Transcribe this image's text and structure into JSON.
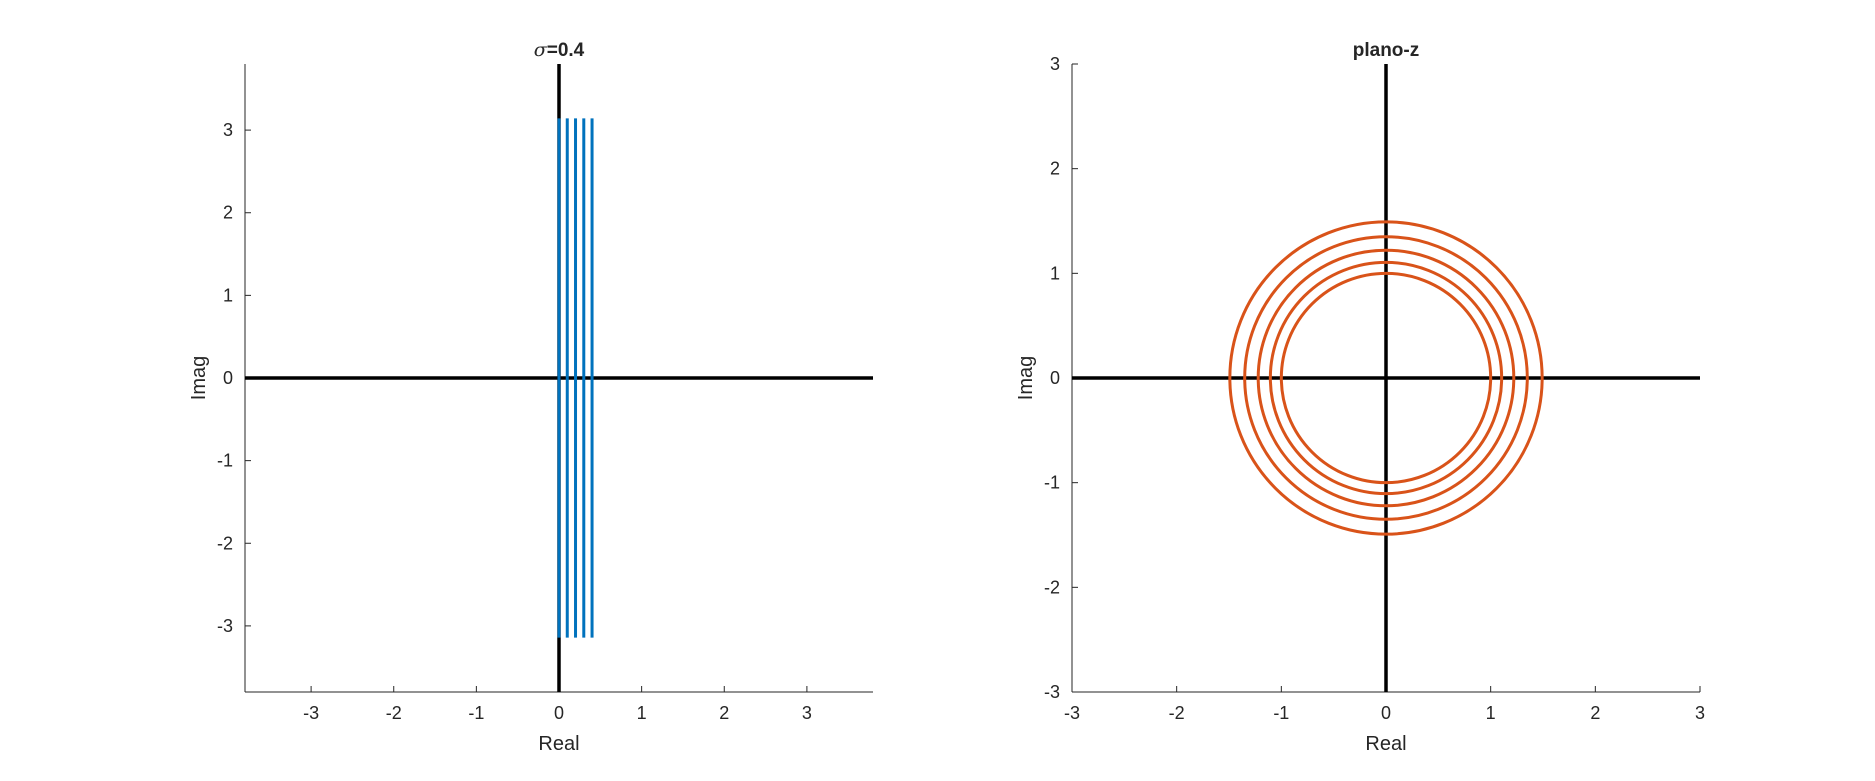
{
  "chart_data": [
    {
      "type": "line",
      "title": "=0.4",
      "title_symbol": "σ",
      "xlabel": "Real",
      "ylabel": "Imag",
      "xlim": [
        -3.8,
        3.8
      ],
      "ylim": [
        -3.8,
        3.8
      ],
      "xticks": [
        -3,
        -2,
        -1,
        0,
        1,
        2,
        3
      ],
      "yticks": [
        -3,
        -2,
        -1,
        0,
        1,
        2,
        3
      ],
      "grid": false,
      "reference_lines": [
        {
          "name": "real-axis",
          "x": [
            -3.8,
            3.8
          ],
          "y": [
            0,
            0
          ],
          "color": "#000000"
        },
        {
          "name": "imag-axis",
          "x": [
            0,
            0
          ],
          "y": [
            -3.8,
            3.8
          ],
          "color": "#000000"
        }
      ],
      "series": [
        {
          "x": [
            0.0,
            0.0
          ],
          "y": [
            -3.1416,
            3.1416
          ],
          "color": "#0072BD"
        },
        {
          "x": [
            0.1,
            0.1
          ],
          "y": [
            -3.1416,
            3.1416
          ],
          "color": "#0072BD"
        },
        {
          "x": [
            0.2,
            0.2
          ],
          "y": [
            -3.1416,
            3.1416
          ],
          "color": "#0072BD"
        },
        {
          "x": [
            0.3,
            0.3
          ],
          "y": [
            -3.1416,
            3.1416
          ],
          "color": "#0072BD"
        },
        {
          "x": [
            0.4,
            0.4
          ],
          "y": [
            -3.1416,
            3.1416
          ],
          "color": "#0072BD"
        }
      ]
    },
    {
      "type": "line",
      "title": "plano-z",
      "xlabel": "Real",
      "ylabel": "Imag",
      "xlim": [
        -3,
        3
      ],
      "ylim": [
        -3,
        3
      ],
      "xticks": [
        -3,
        -2,
        -1,
        0,
        1,
        2,
        3
      ],
      "yticks": [
        -3,
        -2,
        -1,
        0,
        1,
        2,
        3
      ],
      "grid": false,
      "reference_lines": [
        {
          "name": "real-axis",
          "x": [
            -3,
            3
          ],
          "y": [
            0,
            0
          ],
          "color": "#000000"
        },
        {
          "name": "imag-axis",
          "x": [
            0,
            0
          ],
          "y": [
            -3,
            3
          ],
          "color": "#000000"
        }
      ],
      "circles": [
        {
          "center": [
            0,
            0
          ],
          "radius": 1.0,
          "color": "#D95319"
        },
        {
          "center": [
            0,
            0
          ],
          "radius": 1.105,
          "color": "#D95319"
        },
        {
          "center": [
            0,
            0
          ],
          "radius": 1.221,
          "color": "#D95319"
        },
        {
          "center": [
            0,
            0
          ],
          "radius": 1.35,
          "color": "#D95319"
        },
        {
          "center": [
            0,
            0
          ],
          "radius": 1.492,
          "color": "#D95319"
        }
      ]
    }
  ]
}
